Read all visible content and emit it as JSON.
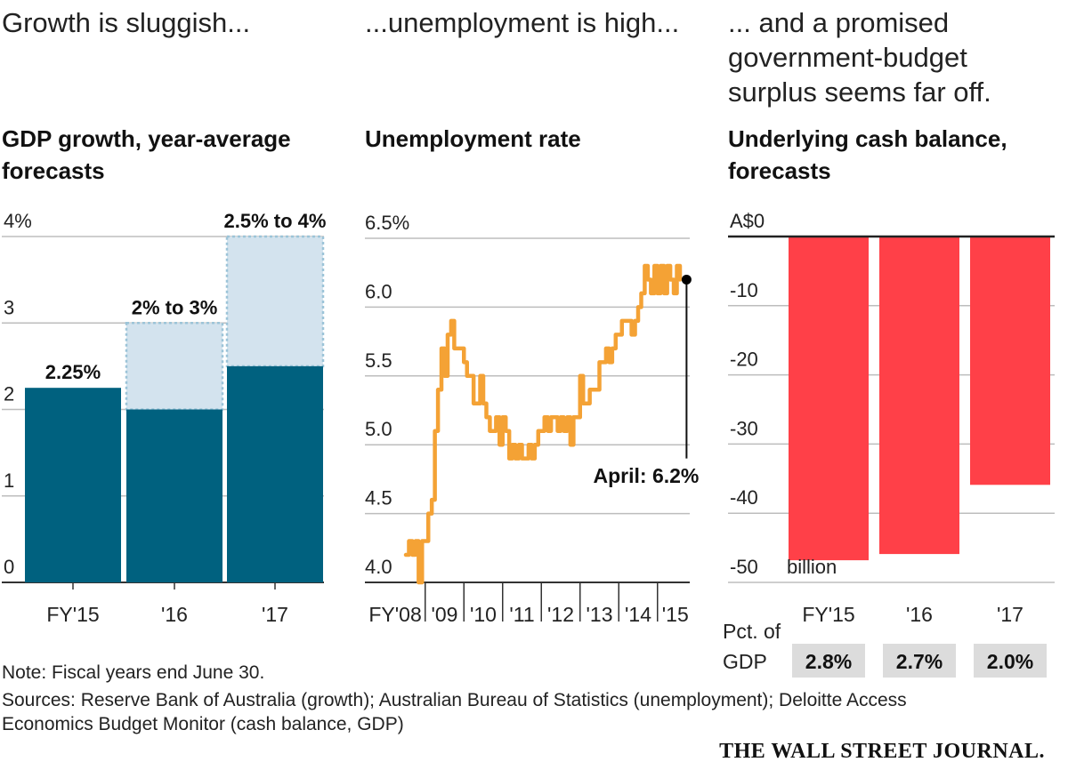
{
  "panels": {
    "gdp": {
      "headline": "Growth is sluggish...",
      "title_line1": "GDP growth, year-average",
      "title_line2": "forecasts"
    },
    "unemployment": {
      "headline": "...unemployment is high...",
      "title_line1": "Unemployment rate"
    },
    "cash": {
      "headline_line1": "... and a promised",
      "headline_line2": "government-budget",
      "headline_line3": "surplus seems far off.",
      "title_line1": "Underlying cash balance,",
      "title_line2": "forecasts"
    }
  },
  "chart_data": [
    {
      "type": "bar",
      "categories": [
        "FY'15",
        "'16",
        "'17"
      ],
      "series": [
        {
          "values": [
            2.25,
            2.0,
            2.5
          ]
        },
        {
          "values": [
            2.25,
            3.0,
            4.0
          ]
        }
      ],
      "range_labels": [
        "2.25%",
        "2% to 3%",
        "2.5% to 4%"
      ],
      "y_ticks": [
        0,
        1,
        2,
        3,
        4
      ],
      "y_tick_labels": [
        "0",
        "1",
        "2",
        "3",
        "4%"
      ],
      "ylim": [
        0,
        4
      ],
      "colors": {
        "base": "#00617f",
        "range": "#d3e3ee",
        "range_border": "#9cc4d8"
      }
    },
    {
      "type": "line",
      "x": [
        2008.0,
        2008.08,
        2008.17,
        2008.25,
        2008.33,
        2008.42,
        2008.5,
        2008.58,
        2008.67,
        2008.75,
        2008.83,
        2008.92,
        2009.0,
        2009.08,
        2009.17,
        2009.25,
        2009.33,
        2009.42,
        2009.5,
        2009.58,
        2009.67,
        2009.75,
        2009.83,
        2009.92,
        2010.0,
        2010.08,
        2010.17,
        2010.25,
        2010.33,
        2010.42,
        2010.5,
        2010.58,
        2010.67,
        2010.75,
        2010.83,
        2010.92,
        2011.0,
        2011.08,
        2011.17,
        2011.25,
        2011.33,
        2011.42,
        2011.5,
        2011.58,
        2011.67,
        2011.75,
        2011.83,
        2011.92,
        2012.0,
        2012.08,
        2012.17,
        2012.25,
        2012.33,
        2012.42,
        2012.5,
        2012.58,
        2012.67,
        2012.75,
        2012.83,
        2012.92,
        2013.0,
        2013.08,
        2013.17,
        2013.25,
        2013.33,
        2013.42,
        2013.5,
        2013.58,
        2013.67,
        2013.75,
        2013.83,
        2013.92,
        2014.0,
        2014.08,
        2014.17,
        2014.25,
        2014.33,
        2014.42,
        2014.5,
        2014.58,
        2014.67,
        2014.75,
        2014.83,
        2014.92,
        2015.0,
        2015.08
      ],
      "values": [
        4.2,
        4.3,
        4.2,
        4.3,
        4.0,
        4.3,
        4.3,
        4.5,
        4.6,
        5.1,
        5.4,
        5.7,
        5.5,
        5.8,
        5.9,
        5.7,
        5.7,
        5.7,
        5.6,
        5.5,
        5.5,
        5.3,
        5.3,
        5.5,
        5.3,
        5.2,
        5.1,
        5.1,
        5.2,
        5.0,
        5.2,
        5.1,
        4.9,
        5.0,
        4.9,
        5.0,
        4.9,
        4.9,
        5.0,
        4.9,
        5.0,
        5.1,
        5.1,
        5.2,
        5.1,
        5.2,
        5.2,
        5.1,
        5.2,
        5.1,
        5.2,
        5.0,
        5.2,
        5.2,
        5.5,
        5.3,
        5.3,
        5.4,
        5.4,
        5.4,
        5.6,
        5.6,
        5.7,
        5.6,
        5.7,
        5.8,
        5.8,
        5.9,
        5.9,
        5.9,
        5.8,
        5.9,
        6.0,
        6.1,
        6.3,
        6.2,
        6.1,
        6.3,
        6.1,
        6.3,
        6.1,
        6.3,
        6.2,
        6.1,
        6.3,
        6.2
      ],
      "last_point": {
        "x": 2015.25,
        "y": 6.2
      },
      "annotation": "April: 6.2%",
      "x_tick_labels": [
        "FY'08",
        "'09",
        "'10",
        "'11",
        "'12",
        "'13",
        "'14",
        "'15"
      ],
      "y_ticks": [
        4.0,
        4.5,
        5.0,
        5.5,
        6.0,
        6.5
      ],
      "y_tick_labels": [
        "4.0",
        "4.5",
        "5.0",
        "5.5",
        "6.0",
        "6.5%"
      ],
      "ylim": [
        4.0,
        6.5
      ],
      "colors": {
        "line": "#f4a235",
        "dot": "#000000"
      }
    },
    {
      "type": "bar",
      "categories": [
        "FY'15",
        "'16",
        "'17"
      ],
      "values": [
        -46.8,
        -45.9,
        -35.9
      ],
      "y_ticks": [
        0,
        -10,
        -20,
        -30,
        -40,
        -50
      ],
      "y_tick_labels": [
        "A$0",
        "-10",
        "-20",
        "-30",
        "-40",
        "-50"
      ],
      "unit_label": "billion",
      "ylim": [
        -50,
        0
      ],
      "pct_label_line1": "Pct. of",
      "pct_label_line2": "GDP",
      "pct_of_gdp": [
        "2.8%",
        "2.7%",
        "2.0%"
      ],
      "colors": {
        "bar": "#ff4048",
        "pct_box": "#dcdcdc"
      }
    }
  ],
  "footer": {
    "note": "Note: Fiscal years end June 30.",
    "sources_line1": "Sources: Reserve Bank of Australia (growth); Australian Bureau of Statistics (unemployment); Deloitte Access",
    "sources_line2": "Economics Budget Monitor (cash balance, GDP)",
    "publisher": "THE WALL STREET JOURNAL."
  }
}
